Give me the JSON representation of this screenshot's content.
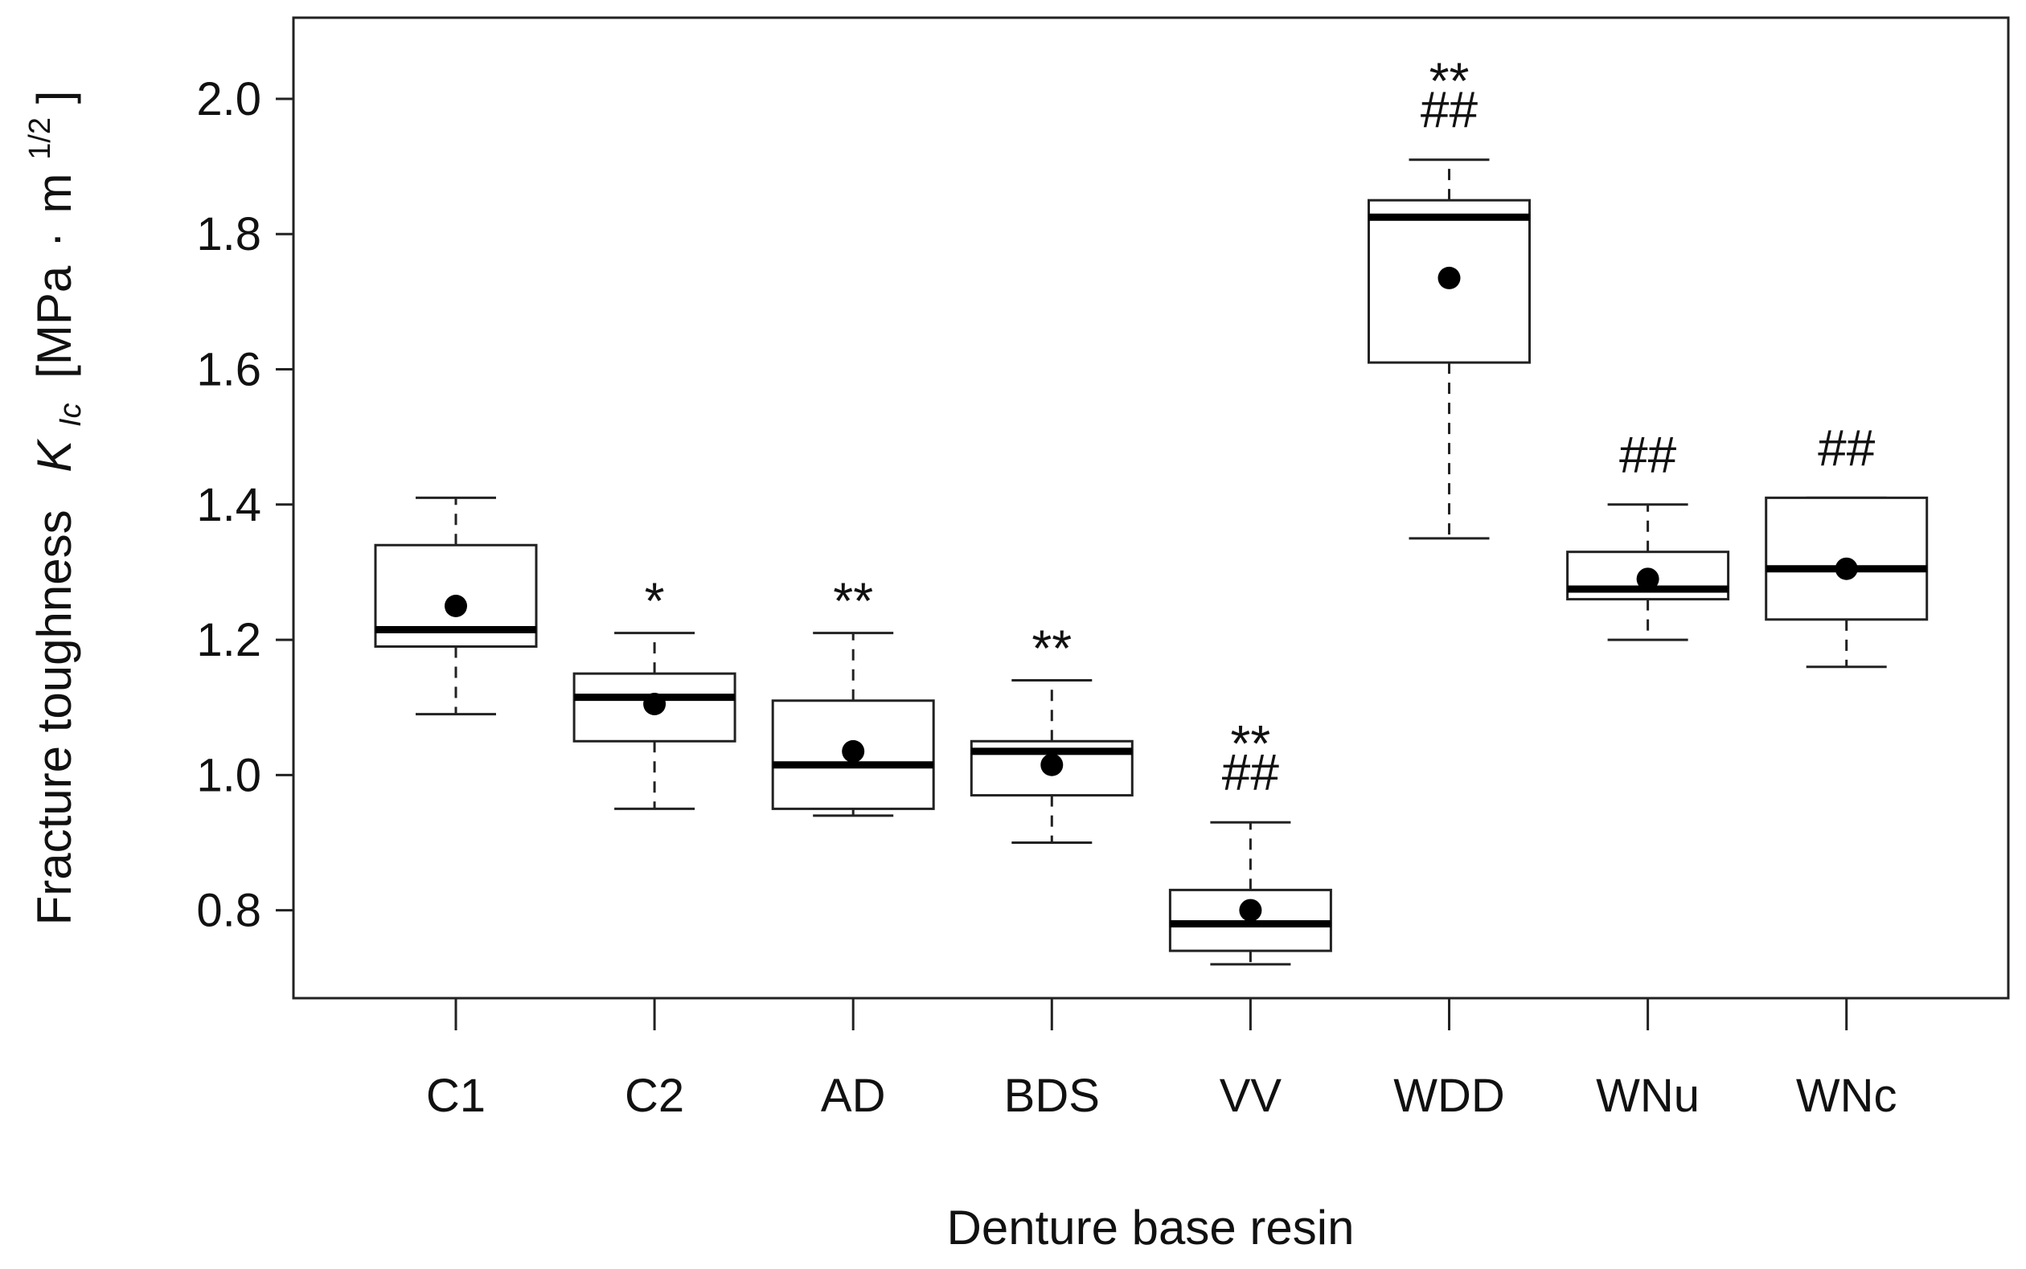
{
  "chart_data": {
    "type": "box",
    "title": "",
    "xlabel": "Denture base resin",
    "ylabel": {
      "prefix": "Fracture toughness",
      "symbol": "K",
      "subscript": "Ic",
      "unit_open": "[MPa",
      "dot": "·",
      "unit_m": "m",
      "superscript": "1/2",
      "unit_close": "]"
    },
    "ylim": [
      0.67,
      2.12
    ],
    "yticks": [
      0.8,
      1.0,
      1.2,
      1.4,
      1.6,
      1.8,
      2.0
    ],
    "ytick_labels": [
      "0.8",
      "1.0",
      "1.2",
      "1.4",
      "1.6",
      "1.8",
      "2.0"
    ],
    "categories": [
      "C1",
      "C2",
      "AD",
      "BDS",
      "VV",
      "WDD",
      "WNu",
      "WNc"
    ],
    "boxes": [
      {
        "category": "C1",
        "whisker_low": 1.09,
        "q1": 1.19,
        "median": 1.215,
        "q3": 1.34,
        "whisker_high": 1.41,
        "mean": 1.25,
        "annotations": []
      },
      {
        "category": "C2",
        "whisker_low": 0.95,
        "q1": 1.05,
        "median": 1.115,
        "q3": 1.15,
        "whisker_high": 1.21,
        "mean": 1.105,
        "annotations": [
          "*"
        ]
      },
      {
        "category": "AD",
        "whisker_low": 0.94,
        "q1": 0.95,
        "median": 1.015,
        "q3": 1.11,
        "whisker_high": 1.21,
        "mean": 1.035,
        "annotations": [
          "**"
        ]
      },
      {
        "category": "BDS",
        "whisker_low": 0.9,
        "q1": 0.97,
        "median": 1.035,
        "q3": 1.05,
        "whisker_high": 1.14,
        "mean": 1.015,
        "annotations": [
          "**"
        ]
      },
      {
        "category": "VV",
        "whisker_low": 0.72,
        "q1": 0.74,
        "median": 0.78,
        "q3": 0.83,
        "whisker_high": 0.93,
        "mean": 0.8,
        "annotations": [
          "**",
          "##"
        ]
      },
      {
        "category": "WDD",
        "whisker_low": 1.35,
        "q1": 1.61,
        "median": 1.825,
        "q3": 1.85,
        "whisker_high": 1.91,
        "mean": 1.735,
        "annotations": [
          "**",
          "##"
        ]
      },
      {
        "category": "WNu",
        "whisker_low": 1.2,
        "q1": 1.26,
        "median": 1.275,
        "q3": 1.33,
        "whisker_high": 1.4,
        "mean": 1.29,
        "annotations": [
          "##"
        ]
      },
      {
        "category": "WNc",
        "whisker_low": 1.16,
        "q1": 1.23,
        "median": 1.305,
        "q3": 1.41,
        "whisker_high": 1.41,
        "mean": 1.305,
        "annotations": [
          "##"
        ]
      }
    ],
    "legend": "none",
    "grid": false
  }
}
